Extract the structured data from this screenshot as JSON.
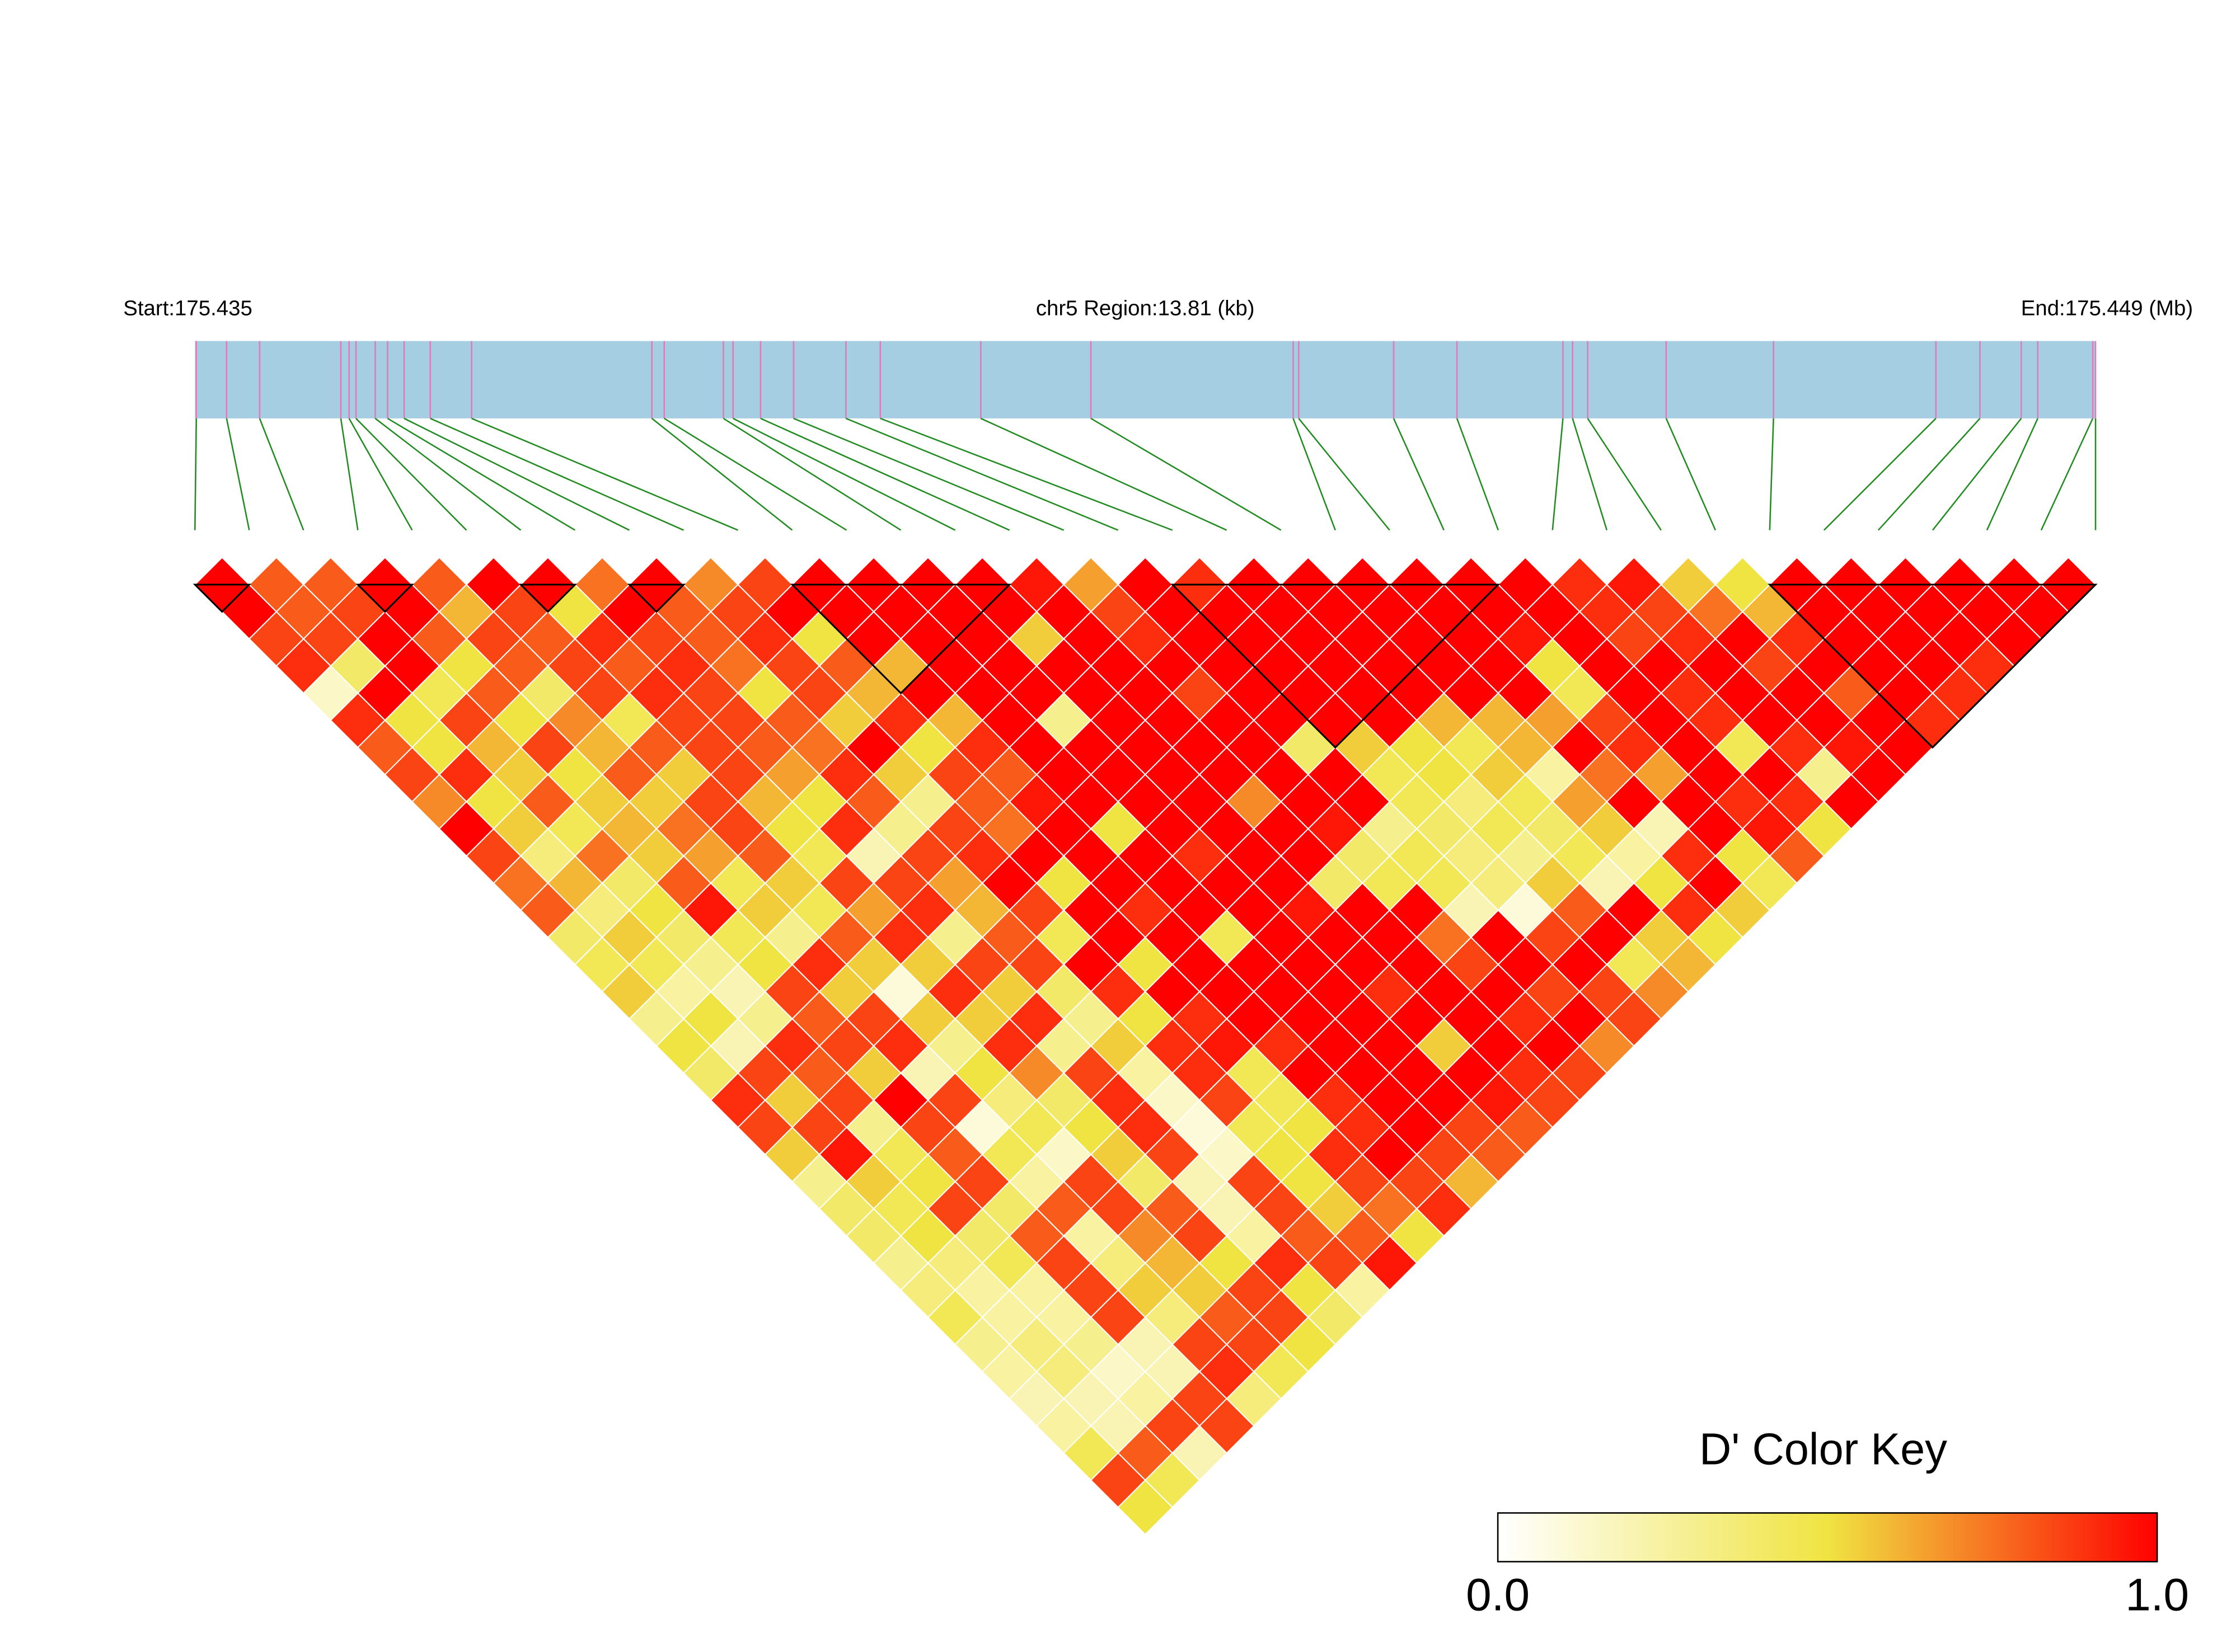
{
  "chart_data": {
    "type": "ld_heatmap",
    "start_label": "Start:175.435",
    "region_label": "chr5 Region:13.81 (kb)",
    "end_label": "End:175.449 (Mb)",
    "xlim": [
      0,
      13.81
    ],
    "positions": [
      0.01,
      0.23,
      0.47,
      1.06,
      1.12,
      1.17,
      1.31,
      1.4,
      1.52,
      1.71,
      2.01,
      3.32,
      3.41,
      3.84,
      3.91,
      4.11,
      4.35,
      4.73,
      4.98,
      5.71,
      6.51,
      7.98,
      8.02,
      8.71,
      9.17,
      9.94,
      10.01,
      10.12,
      10.69,
      11.47,
      12.65,
      12.97,
      13.27,
      13.39,
      13.79,
      13.81
    ],
    "bar_color": "#a6cee3",
    "marker_color": "#e07ab8",
    "link_color": "#228b22",
    "dprime": [
      [
        1,
        0.8,
        0.8,
        1,
        0.8,
        1,
        1,
        0.75,
        1,
        0.7,
        0.85,
        1,
        1,
        1,
        1,
        0.95,
        0.65,
        1,
        0.9,
        1,
        1,
        1,
        1,
        1,
        1,
        0.9,
        0.95,
        0.55,
        0.5,
        1,
        1,
        1,
        1,
        1,
        1
      ],
      [
        1,
        0.8,
        0.85,
        1,
        0.6,
        0.85,
        0.5,
        1,
        0.8,
        0.85,
        1,
        1,
        1,
        1,
        1,
        1,
        0.85,
        1,
        1,
        1,
        1,
        1,
        1,
        1,
        1,
        0.9,
        0.85,
        0.75,
        0.6,
        1,
        1,
        1,
        1,
        1
      ],
      [
        0.85,
        0.85,
        1,
        0.8,
        0.85,
        0.8,
        0.9,
        0.85,
        0.8,
        0.9,
        0.5,
        1,
        1,
        1,
        0.55,
        1,
        0.9,
        1,
        1,
        1,
        1,
        1,
        1,
        0.95,
        1,
        0.85,
        0.9,
        1,
        0.9,
        1,
        1,
        1,
        1
      ],
      [
        0.9,
        0.4,
        1,
        0.5,
        0.8,
        0.85,
        0.8,
        0.9,
        0.75,
        0.85,
        0.8,
        0.6,
        1,
        1,
        1,
        1,
        1,
        1,
        1,
        1,
        1,
        1,
        1,
        0.5,
        1,
        1,
        1,
        0.85,
        1,
        1,
        1,
        0.9
      ],
      [
        0.15,
        1,
        0.45,
        0.8,
        0.4,
        0.85,
        0.9,
        0.85,
        0.5,
        0.85,
        0.6,
        1,
        1,
        1,
        1,
        1,
        0.85,
        1,
        1,
        1,
        1,
        1,
        1,
        0.45,
        1,
        0.9,
        1,
        1,
        0.8,
        1,
        0.9
      ],
      [
        0.9,
        0.5,
        0.85,
        0.5,
        0.7,
        0.45,
        0.85,
        0.85,
        0.8,
        0.55,
        0.9,
        0.6,
        1,
        0.3,
        1,
        1,
        1,
        1,
        1,
        1,
        0.6,
        0.6,
        0.65,
        0.85,
        1,
        0.9,
        1,
        1,
        1,
        0.9
      ],
      [
        0.8,
        0.5,
        0.6,
        0.85,
        0.6,
        0.8,
        0.85,
        0.8,
        0.75,
        1,
        0.5,
        0.9,
        1,
        1,
        1,
        1,
        1,
        0.4,
        0.55,
        0.5,
        0.45,
        0.6,
        1,
        0.9,
        1,
        0.45,
        0.9,
        0.95,
        1
      ],
      [
        0.85,
        0.9,
        0.55,
        0.5,
        0.8,
        0.55,
        0.85,
        0.65,
        0.9,
        0.55,
        0.85,
        0.8,
        1,
        1,
        1,
        1,
        1,
        1,
        0.45,
        0.5,
        0.55,
        0.25,
        0.75,
        0.65,
        1,
        1,
        0.3,
        1
      ],
      [
        0.7,
        0.5,
        0.8,
        0.55,
        0.55,
        0.85,
        0.6,
        0.5,
        0.8,
        0.3,
        0.8,
        0.95,
        1,
        1,
        1,
        0.7,
        1,
        1,
        0.45,
        0.35,
        0.45,
        0.65,
        1,
        1,
        0.9,
        0.9,
        1
      ],
      [
        1,
        0.55,
        0.45,
        0.6,
        0.75,
        0.85,
        0.5,
        0.9,
        0.3,
        0.85,
        0.75,
        1,
        0.5,
        1,
        1,
        1,
        0.95,
        0.3,
        0.4,
        0.45,
        0.4,
        0.55,
        0.2,
        1,
        0.95,
        0.5
      ],
      [
        0.85,
        0.35,
        0.75,
        0.55,
        0.65,
        0.8,
        0.45,
        0.2,
        0.85,
        0.9,
        1,
        1,
        1,
        0.9,
        1,
        1,
        0.4,
        0.45,
        0.35,
        0.3,
        0.45,
        0.25,
        0.9,
        0.5,
        0.8
      ],
      [
        0.75,
        0.6,
        0.4,
        0.8,
        0.45,
        0.55,
        0.85,
        0.85,
        0.65,
        1,
        0.5,
        1,
        1,
        1,
        1,
        0.4,
        0.45,
        0.45,
        0.35,
        0.55,
        0.2,
        0.5,
        1,
        0.45
      ],
      [
        0.8,
        0.35,
        0.5,
        0.95,
        0.55,
        0.45,
        0.65,
        0.9,
        0.6,
        0.85,
        1,
        0.9,
        1,
        1,
        0.95,
        1,
        1,
        0.2,
        0.1,
        0.8,
        1,
        0.9,
        0.55
      ],
      [
        0.4,
        0.55,
        0.4,
        0.45,
        0.3,
        0.8,
        0.9,
        0.3,
        0.8,
        0.45,
        1,
        1,
        0.45,
        1,
        1,
        1,
        0.75,
        1,
        0.85,
        1,
        0.55,
        0.5
      ],
      [
        0.45,
        0.45,
        0.3,
        0.5,
        0.9,
        0.55,
        0.55,
        0.85,
        0.85,
        1,
        0.5,
        1,
        1,
        1,
        1,
        1,
        0.85,
        1,
        1,
        0.45,
        0.6
      ],
      [
        0.55,
        0.25,
        0.2,
        0.85,
        0.55,
        0.1,
        0.9,
        0.55,
        0.4,
        0.9,
        1,
        1,
        1,
        1,
        0.9,
        1,
        1,
        0.85,
        0.85,
        0.7
      ],
      [
        0.3,
        0.5,
        0.3,
        0.8,
        0.85,
        0.55,
        0.55,
        0.9,
        0.3,
        0.5,
        0.9,
        1,
        1,
        1,
        1,
        1,
        0.9,
        1,
        0.85
      ],
      [
        0.5,
        0.2,
        0.9,
        0.85,
        0.9,
        0.3,
        0.9,
        0.3,
        0.55,
        0.9,
        0.95,
        0.9,
        1,
        1,
        0.55,
        1,
        1,
        0.7
      ],
      [
        0.4,
        0.85,
        0.8,
        0.55,
        0.2,
        0.5,
        0.7,
        0.85,
        0.25,
        0.9,
        0.45,
        1,
        1,
        1,
        1,
        0.9,
        0.85
      ],
      [
        0.9,
        0.55,
        0.85,
        1,
        0.85,
        0.35,
        0.4,
        0.9,
        0.15,
        0.85,
        0.45,
        0.9,
        1,
        1,
        0.95,
        0.85
      ],
      [
        0.85,
        0.85,
        0.3,
        0.85,
        0.1,
        0.45,
        0.5,
        0.9,
        0.1,
        0.45,
        0.5,
        0.9,
        1,
        0.85,
        0.8
      ],
      [
        0.55,
        0.95,
        0.45,
        0.8,
        0.45,
        0.15,
        0.55,
        0.85,
        0.15,
        0.5,
        0.9,
        1,
        0.85,
        0.8
      ],
      [
        0.3,
        0.55,
        0.5,
        0.85,
        0.25,
        0.85,
        0.4,
        0.2,
        0.85,
        0.5,
        0.85,
        0.85,
        0.6
      ],
      [
        0.4,
        0.45,
        0.85,
        0.4,
        0.8,
        0.85,
        0.8,
        0.2,
        0.85,
        0.55,
        0.75,
        0.9
      ],
      [
        0.4,
        0.5,
        0.4,
        0.8,
        0.25,
        0.7,
        0.85,
        0.25,
        0.8,
        0.8,
        0.5
      ],
      [
        0.3,
        0.35,
        0.45,
        0.85,
        0.35,
        0.6,
        0.5,
        0.9,
        0.85,
        0.95
      ],
      [
        0.35,
        0.25,
        0.25,
        0.85,
        0.55,
        0.55,
        0.85,
        0.5,
        0.25
      ],
      [
        0.45,
        0.25,
        0.25,
        0.85,
        0.35,
        0.8,
        0.85,
        0.4
      ],
      [
        0.3,
        0.35,
        0.3,
        0.2,
        0.85,
        0.85,
        0.5
      ],
      [
        0.25,
        0.35,
        0.15,
        0.2,
        0.9,
        0.45
      ],
      [
        0.2,
        0.2,
        0.25,
        0.85,
        0.35
      ],
      [
        0.25,
        0.2,
        0.85,
        0.85
      ],
      [
        0.45,
        0.8,
        0.2
      ],
      [
        0.85,
        0.45
      ],
      [
        0.5
      ]
    ],
    "blocks": [
      [
        0,
        1
      ],
      [
        3,
        4
      ],
      [
        6,
        7
      ],
      [
        8,
        9
      ],
      [
        11,
        15
      ],
      [
        18,
        24
      ],
      [
        29,
        35
      ]
    ],
    "colorbar": {
      "title": "D' Color Key",
      "lim": [
        0,
        1
      ],
      "ticks": [
        {
          "value": 0,
          "label": "0.0"
        },
        {
          "value": 1,
          "label": "1.0"
        }
      ],
      "colors": [
        "#ffffff",
        "#f0e442",
        "#ff0000"
      ]
    }
  }
}
